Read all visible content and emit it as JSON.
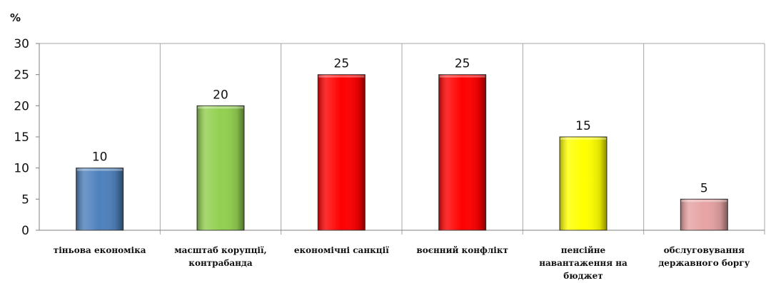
{
  "chart_data": {
    "type": "bar",
    "unit_label": "%",
    "categories": [
      [
        "тіньова економіка"
      ],
      [
        "масштаб корупції,",
        "контрабанда"
      ],
      [
        "економічні санкції"
      ],
      [
        "воєнний конфлікт"
      ],
      [
        "пенсійне",
        "навантаження на",
        "бюджет"
      ],
      [
        "обслуговування",
        "державного боргу"
      ]
    ],
    "values": [
      10,
      20,
      25,
      25,
      15,
      5
    ],
    "colors": [
      "#4f81bd",
      "#92d050",
      "#ff0000",
      "#ff0000",
      "#ffff00",
      "#e6a3a3"
    ],
    "ylim": [
      0,
      30
    ],
    "yticks": [
      0,
      5,
      10,
      15,
      20,
      25,
      30
    ],
    "grid": "vertical category separators",
    "legend": "none"
  }
}
